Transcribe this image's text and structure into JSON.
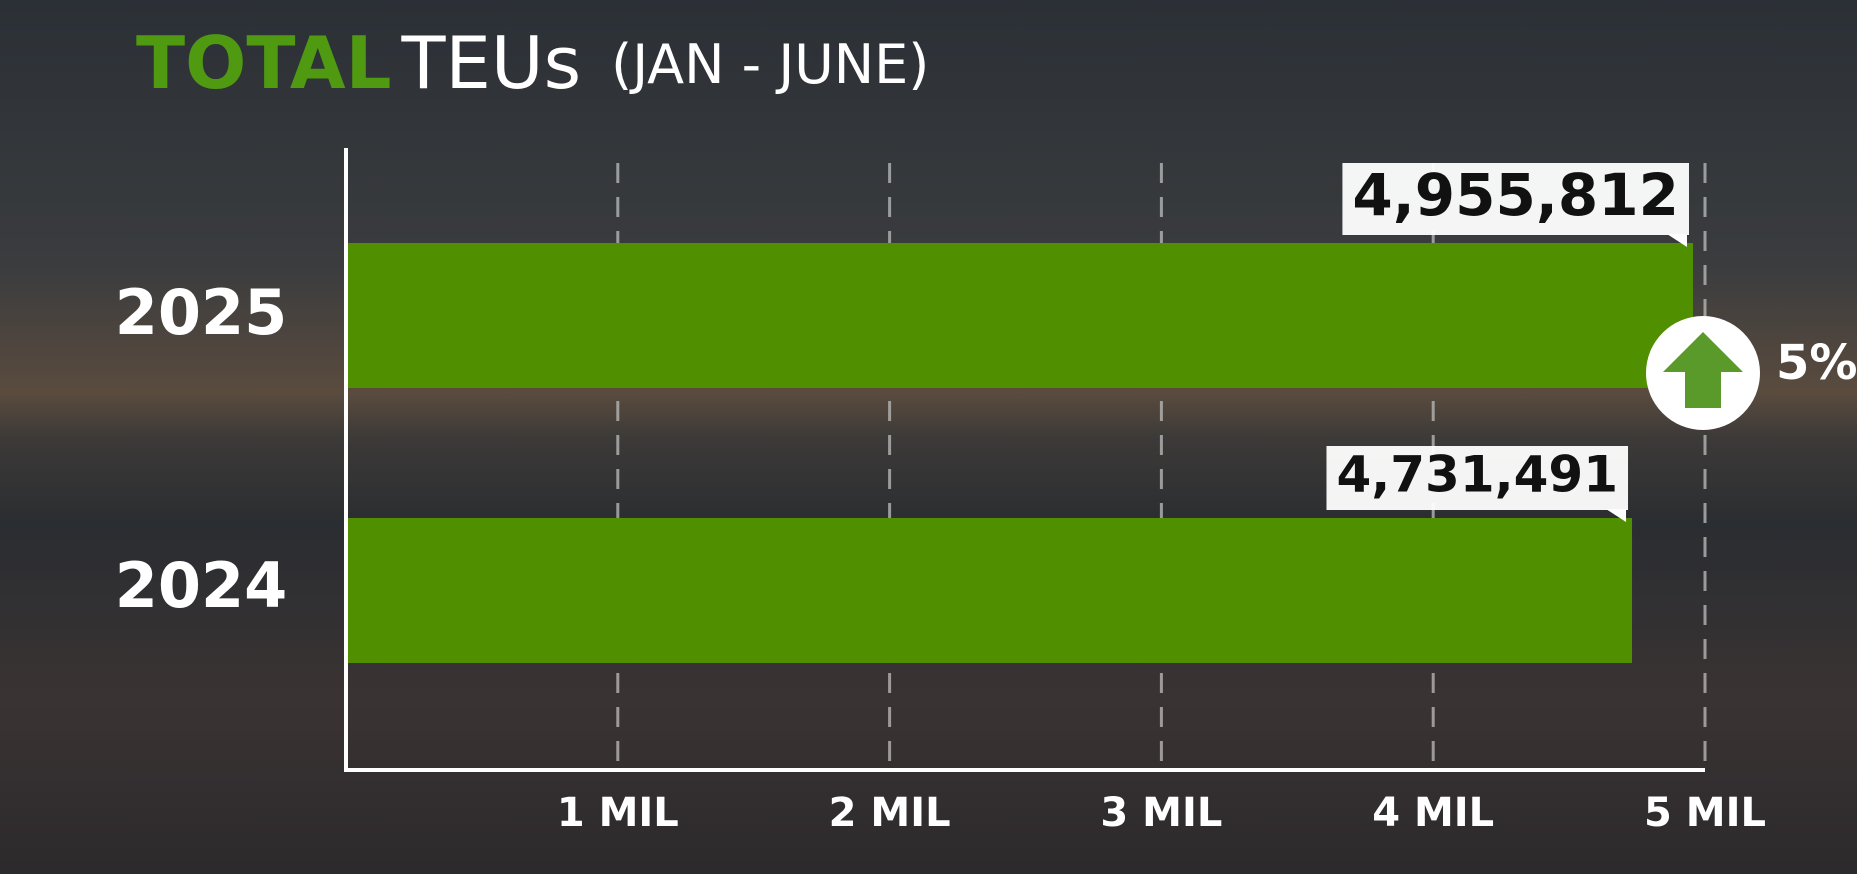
{
  "chart_data": {
    "type": "bar",
    "orientation": "horizontal",
    "title_parts": [
      "TOTAL",
      "TEUs",
      "(JAN - JUNE)"
    ],
    "categories": [
      "2025",
      "2024"
    ],
    "values": [
      4955812,
      4731491
    ],
    "value_labels": [
      "4,955,812",
      "4,731,491"
    ],
    "color": "#4f8f00",
    "xlim": [
      0,
      5000000
    ],
    "xticks": [
      {
        "value": 1000000,
        "label": "1 MIL"
      },
      {
        "value": 2000000,
        "label": "2 MIL"
      },
      {
        "value": 3000000,
        "label": "3 MIL"
      },
      {
        "value": 4000000,
        "label": "4 MIL"
      },
      {
        "value": 5000000,
        "label": "5 MIL"
      }
    ],
    "grid": true,
    "annotation": "5%"
  }
}
